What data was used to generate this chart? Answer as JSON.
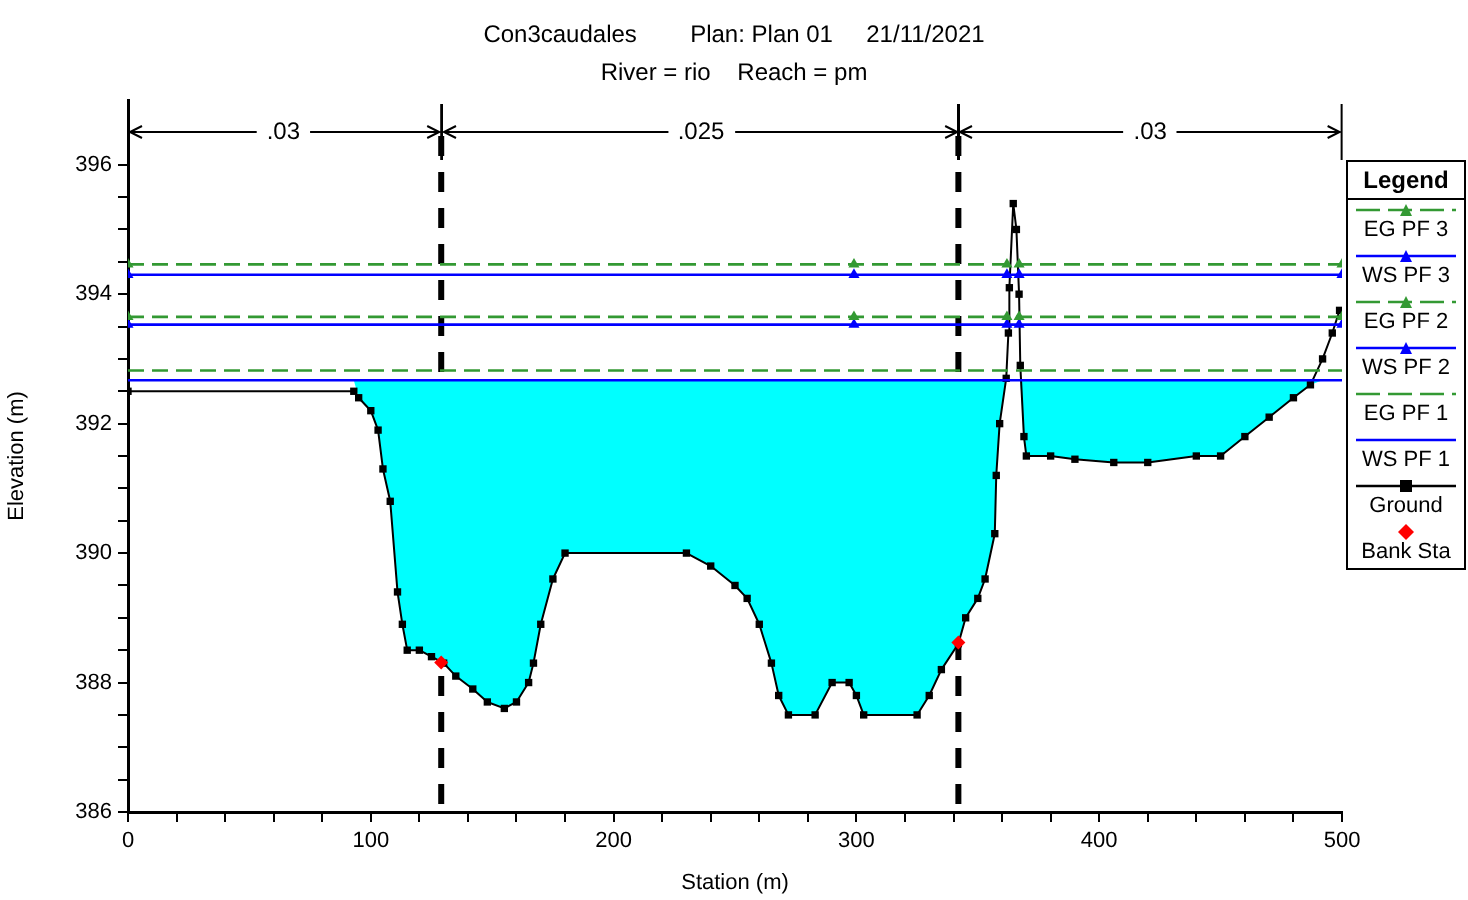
{
  "chart_data": {
    "type": "line",
    "title": "Con3caudales        Plan: Plan 01     21/11/2021",
    "subtitle": "River = rio    Reach = pm",
    "xlabel": "Station (m)",
    "ylabel": "Elevation (m)",
    "legend_title": "Legend",
    "legend": "right",
    "grid": false,
    "xlim": [
      0,
      500
    ],
    "xticks": [
      0,
      {
        "value": 20,
        "label": null
      },
      {
        "value": 40,
        "label": null
      },
      {
        "value": 60,
        "label": null
      },
      {
        "value": 80,
        "label": null
      },
      100,
      {
        "value": 120,
        "label": null
      },
      {
        "value": 140,
        "label": null
      },
      {
        "value": 160,
        "label": null
      },
      {
        "value": 180,
        "label": null
      },
      200,
      {
        "value": 220,
        "label": null
      },
      {
        "value": 240,
        "label": null
      },
      {
        "value": 260,
        "label": null
      },
      {
        "value": 280,
        "label": null
      },
      300,
      {
        "value": 320,
        "label": null
      },
      {
        "value": 340,
        "label": null
      },
      {
        "value": 360,
        "label": null
      },
      {
        "value": 380,
        "label": null
      },
      400,
      {
        "value": 420,
        "label": null
      },
      {
        "value": 440,
        "label": null
      },
      {
        "value": 460,
        "label": null
      },
      {
        "value": 480,
        "label": null
      },
      500
    ],
    "ylim": [
      386,
      397
    ],
    "yticks": [
      386,
      {
        "value": 386.5,
        "label": null
      },
      {
        "value": 387,
        "label": null
      },
      {
        "value": 387.5,
        "label": null
      },
      388,
      {
        "value": 388.5,
        "label": null
      },
      {
        "value": 389,
        "label": null
      },
      {
        "value": 389.5,
        "label": null
      },
      390,
      {
        "value": 390.5,
        "label": null
      },
      {
        "value": 391,
        "label": null
      },
      {
        "value": 391.5,
        "label": null
      },
      392,
      {
        "value": 392.5,
        "label": null
      },
      {
        "value": 393,
        "label": null
      },
      {
        "value": 393.5,
        "label": null
      },
      394,
      {
        "value": 394.5,
        "label": null
      },
      {
        "value": 395,
        "label": null
      },
      {
        "value": 395.5,
        "label": null
      },
      396
    ],
    "ref_lines": [
      {
        "axis": "x",
        "value": 129,
        "color": "#000000",
        "line_style": "dashed"
      },
      {
        "axis": "x",
        "value": 342,
        "color": "#000000",
        "line_style": "dashed"
      }
    ],
    "annotations": [
      {
        "text": ".03",
        "x": 64,
        "y": 396.5
      },
      {
        "text": ".025",
        "x": 236,
        "y": 396.5
      },
      {
        "text": ".03",
        "x": 421,
        "y": 396.5
      }
    ],
    "series": [
      {
        "name": "EG PF 3",
        "type": "line",
        "color": "#339933",
        "line_style": "dashed",
        "marker": "triangle",
        "x": [
          0,
          299,
          362,
          367,
          500
        ],
        "values": [
          394.46,
          394.46,
          394.46,
          394.46,
          394.46
        ]
      },
      {
        "name": "WS PF 3",
        "type": "line",
        "color": "#0000ff",
        "line_style": "solid",
        "marker": "triangle",
        "x": [
          0,
          299,
          362,
          367,
          500
        ],
        "values": [
          394.3,
          394.3,
          394.3,
          394.3,
          394.3
        ]
      },
      {
        "name": "EG PF 2",
        "type": "line",
        "color": "#339933",
        "line_style": "dashed",
        "marker": "triangle",
        "x": [
          0,
          299,
          362,
          367,
          500
        ],
        "values": [
          393.65,
          393.65,
          393.65,
          393.65,
          393.65
        ]
      },
      {
        "name": "WS PF 2",
        "type": "line",
        "color": "#0000ff",
        "line_style": "solid",
        "marker": "triangle",
        "x": [
          0,
          299,
          362,
          367,
          500
        ],
        "values": [
          393.53,
          393.53,
          393.53,
          393.53,
          393.53
        ]
      },
      {
        "name": "EG PF 1",
        "type": "line",
        "color": "#339933",
        "line_style": "dashed",
        "marker": "none",
        "x": [
          0,
          500
        ],
        "values": [
          392.82,
          392.82
        ]
      },
      {
        "name": "WS PF 1",
        "type": "line",
        "color": "#0000ff",
        "line_style": "solid",
        "marker": "none",
        "x": [
          0,
          93,
          95,
          100,
          103,
          105,
          108,
          111,
          113,
          115,
          120,
          125,
          130,
          135,
          142,
          148,
          155,
          160,
          165,
          167,
          170,
          175,
          180,
          230,
          240,
          250,
          255,
          260,
          265,
          268,
          272,
          283,
          290,
          297,
          300,
          303,
          325,
          330,
          335,
          342,
          345,
          350,
          353,
          357,
          357.6,
          359,
          361.7,
          362.6,
          363,
          364.6,
          365.9,
          367,
          367.5,
          369,
          370,
          380,
          390,
          406,
          420,
          440,
          450,
          460,
          470,
          480,
          487,
          492,
          496,
          499,
          500
        ],
        "values": [
          392.67,
          392.67,
          392.67,
          392.67,
          392.67,
          392.67,
          392.67,
          392.67,
          392.67,
          392.67,
          392.67,
          392.67,
          392.67,
          392.67,
          392.67,
          392.67,
          392.67,
          392.67,
          392.67,
          392.67,
          392.67,
          392.67,
          392.67,
          392.67,
          392.67,
          392.67,
          392.67,
          392.67,
          392.67,
          392.67,
          392.67,
          392.67,
          392.67,
          392.67,
          392.67,
          392.67,
          392.67,
          392.67,
          392.67,
          392.67,
          392.67,
          392.67,
          392.67,
          392.67,
          392.67,
          392.67,
          392.67,
          392.67,
          392.67,
          392.67,
          392.67,
          392.67,
          392.67,
          392.67,
          392.67,
          392.67,
          392.67,
          392.67,
          392.67,
          392.67,
          392.67,
          392.67,
          392.67,
          392.67,
          392.67,
          392.67,
          392.67,
          392.67,
          392.67
        ],
        "upper": [
          392.67,
          392.67,
          392.67,
          392.67,
          392.67,
          392.67,
          392.67,
          392.67,
          392.67,
          392.67,
          392.67,
          392.67,
          392.67,
          392.67,
          392.67,
          392.67,
          392.67,
          392.67,
          392.67,
          392.67,
          392.67,
          392.67,
          392.67,
          392.67,
          392.67,
          392.67,
          392.67,
          392.67,
          392.67,
          392.67,
          392.67,
          392.67,
          392.67,
          392.67,
          392.67,
          392.67,
          392.67,
          392.67,
          392.67,
          392.67,
          392.67,
          392.67,
          392.67,
          392.67,
          392.67,
          392.67,
          392.67,
          392.67,
          392.67,
          392.67,
          392.67,
          392.67,
          392.67,
          392.67,
          392.67,
          392.67,
          392.67,
          392.67,
          392.67,
          392.67,
          392.67,
          392.67,
          392.67,
          392.67,
          392.67,
          392.67,
          392.67,
          392.67,
          392.67
        ],
        "lower": [
          392.67,
          392.67,
          392.4,
          392.2,
          391.9,
          391.3,
          390.8,
          389.4,
          388.9,
          388.5,
          388.5,
          388.4,
          388.3,
          388.1,
          387.9,
          387.7,
          387.6,
          387.7,
          388,
          388.3,
          388.9,
          389.6,
          390,
          390,
          389.8,
          389.5,
          389.3,
          388.9,
          388.3,
          387.8,
          387.5,
          387.5,
          388,
          388,
          387.8,
          387.5,
          387.5,
          387.8,
          388.2,
          388.6,
          389,
          389.3,
          389.6,
          390.3,
          391.2,
          392,
          392.67,
          392.67,
          392.67,
          392.67,
          392.67,
          392.67,
          392.67,
          391.8,
          391.5,
          391.5,
          391.45,
          391.4,
          391.4,
          391.5,
          391.5,
          391.8,
          392.1,
          392.4,
          392.6,
          392.67,
          392.67,
          392.67,
          392.67
        ]
      },
      {
        "name": "Ground",
        "type": "line",
        "color": "#000000",
        "line_style": "solid",
        "marker": "square",
        "x": [
          0,
          93,
          95,
          100,
          103,
          105,
          108,
          111,
          113,
          115,
          120,
          125,
          130,
          135,
          142,
          148,
          155,
          160,
          165,
          167,
          170,
          175,
          180,
          230,
          240,
          250,
          255,
          260,
          265,
          268,
          272,
          283,
          290,
          297,
          300,
          303,
          325,
          330,
          335,
          342,
          345,
          350,
          353,
          357,
          357.6,
          359,
          361.7,
          362.6,
          363,
          364.6,
          365.9,
          367,
          367.5,
          369,
          370,
          380,
          390,
          406,
          420,
          440,
          450,
          460,
          470,
          480,
          487,
          492,
          496,
          499
        ],
        "values": [
          392.5,
          392.5,
          392.4,
          392.2,
          391.9,
          391.3,
          390.8,
          389.4,
          388.9,
          388.5,
          388.5,
          388.4,
          388.3,
          388.1,
          387.9,
          387.7,
          387.6,
          387.7,
          388,
          388.3,
          388.9,
          389.6,
          390,
          390,
          389.8,
          389.5,
          389.3,
          388.9,
          388.3,
          387.8,
          387.5,
          387.5,
          388,
          388,
          387.8,
          387.5,
          387.5,
          387.8,
          388.2,
          388.6,
          389,
          389.3,
          389.6,
          390.3,
          391.2,
          392,
          392.7,
          393.4,
          394.1,
          395.4,
          395,
          394,
          392.9,
          391.8,
          391.5,
          391.5,
          391.45,
          391.4,
          391.4,
          391.5,
          391.5,
          391.8,
          392.1,
          392.4,
          392.6,
          393,
          393.4,
          393.75
        ]
      },
      {
        "name": "Bank Sta",
        "type": "scatter",
        "color": "#ff0000",
        "marker": "diamond",
        "x": [
          129,
          342
        ],
        "values": [
          388.31,
          388.62
        ]
      }
    ]
  }
}
